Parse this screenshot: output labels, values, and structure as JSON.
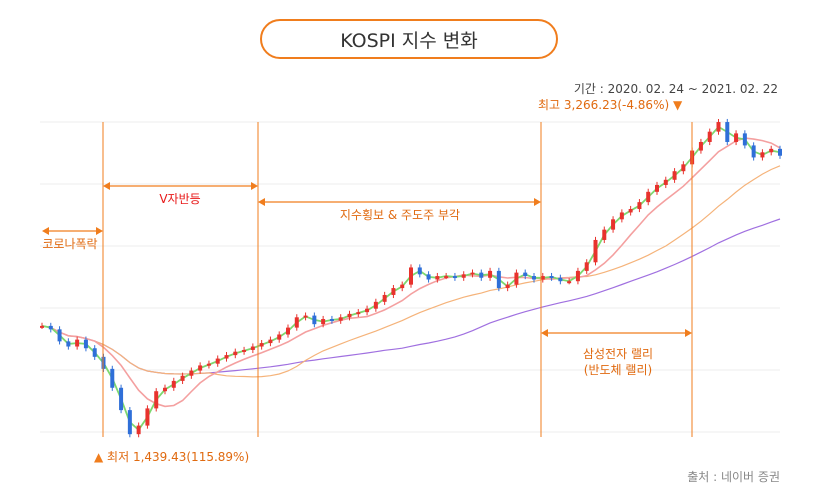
{
  "title": "KOSPI 지수 변화",
  "period": "기간 : 2020. 02. 24 ~ 2021. 02. 22",
  "source": "출처 : 네이버 증권",
  "annotations": {
    "high": "최고 3,266.23(-4.86%)",
    "low": "최저 1,439.43(115.89%)",
    "covid_crash": "코로나폭락",
    "v_rebound": "V자반등",
    "sideways": "지수횡보 & 주도주 부각",
    "samsung_rally_1": "삼성전자 랠리",
    "samsung_rally_2": "(반도체 랠리)"
  },
  "colors": {
    "accent": "#f07d1d",
    "up": "#e8322d",
    "down": "#2f6fd8",
    "ma5": "#7dd86f",
    "ma20": "#f4a0a0",
    "ma60": "#f5b37a",
    "ma120": "#a070e0"
  },
  "chart_data": {
    "type": "candlestick",
    "period": [
      "2020-02-24",
      "2021-02-22"
    ],
    "high": 3266.23,
    "low": 1439.43,
    "series": [
      {
        "kind": "close_estimated",
        "values": [
          2080,
          2060,
          1990,
          1960,
          2000,
          1950,
          1900,
          1830,
          1720,
          1590,
          1450,
          1500,
          1600,
          1700,
          1720,
          1760,
          1790,
          1820,
          1850,
          1860,
          1890,
          1910,
          1930,
          1940,
          1960,
          1980,
          2000,
          2030,
          2070,
          2130,
          2140,
          2090,
          2120,
          2110,
          2130,
          2150,
          2160,
          2180,
          2220,
          2260,
          2300,
          2320,
          2420,
          2380,
          2350,
          2370,
          2370,
          2360,
          2380,
          2390,
          2360,
          2400,
          2300,
          2320,
          2390,
          2370,
          2350,
          2370,
          2360,
          2340,
          2340,
          2400,
          2450,
          2580,
          2640,
          2700,
          2740,
          2760,
          2800,
          2860,
          2900,
          2930,
          2980,
          3020,
          3100,
          3150,
          3210,
          3266,
          3150,
          3200,
          3130,
          3060,
          3090,
          3110,
          3070
        ]
      }
    ]
  }
}
